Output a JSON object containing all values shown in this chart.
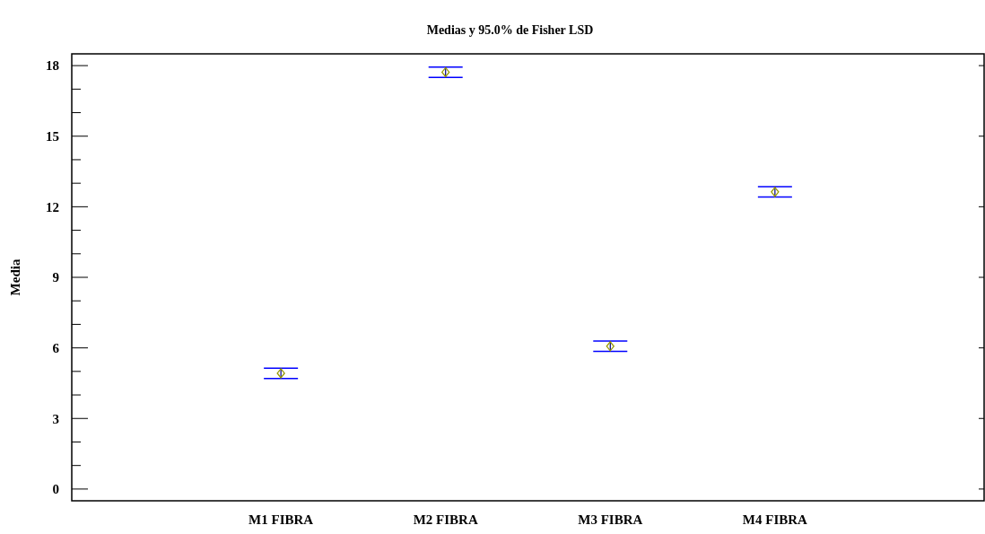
{
  "chart_data": {
    "type": "scatter",
    "title": "Medias y 95.0% de Fisher LSD",
    "ylabel": "Media",
    "categories": [
      "M1 FIBRA",
      "M2 FIBRA",
      "M3 FIBRA",
      "M4 FIBRA"
    ],
    "series": [
      {
        "color": "#999900",
        "values": [
          4.92,
          17.72,
          6.07,
          12.63
        ],
        "errors": [
          0.22,
          0.22,
          0.22,
          0.22
        ]
      }
    ],
    "marker": "diamond",
    "grid": false,
    "ylim": [
      -0.5,
      18.5
    ],
    "yticks": [
      0,
      {
        "value": 1,
        "label": null
      },
      {
        "value": 2,
        "label": null
      },
      3,
      {
        "value": 4,
        "label": null
      },
      {
        "value": 5,
        "label": null
      },
      6,
      {
        "value": 7,
        "label": null
      },
      {
        "value": 8,
        "label": null
      },
      9,
      {
        "value": 10,
        "label": null
      },
      {
        "value": 11,
        "label": null
      },
      12,
      {
        "value": 13,
        "label": null
      },
      {
        "value": 14,
        "label": null
      },
      15,
      {
        "value": 16,
        "label": null
      },
      {
        "value": 17,
        "label": null
      },
      18
    ]
  }
}
